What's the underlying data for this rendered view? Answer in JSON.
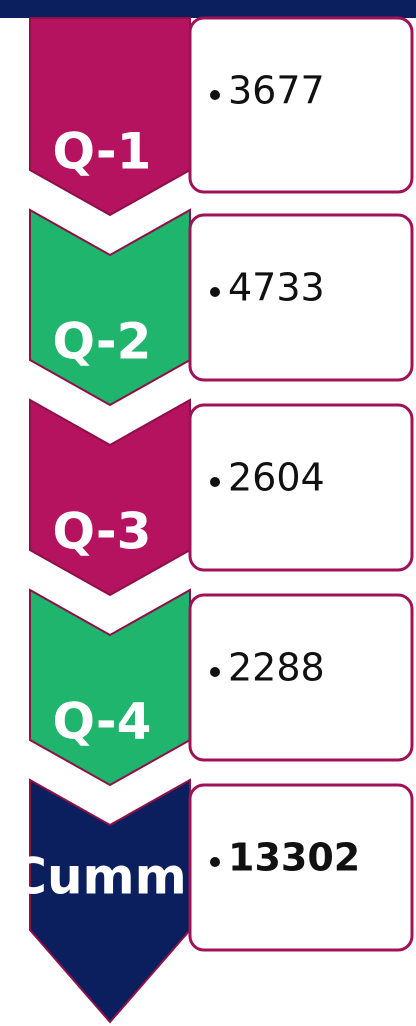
{
  "items": [
    {
      "label": "Q-1",
      "value": 3677
    },
    {
      "label": "Q-2",
      "value": 4733
    },
    {
      "label": "Q-3",
      "value": 2604
    },
    {
      "label": "Q-4",
      "value": 2288
    },
    {
      "label": "Cumm.",
      "value": 13302
    }
  ]
}
